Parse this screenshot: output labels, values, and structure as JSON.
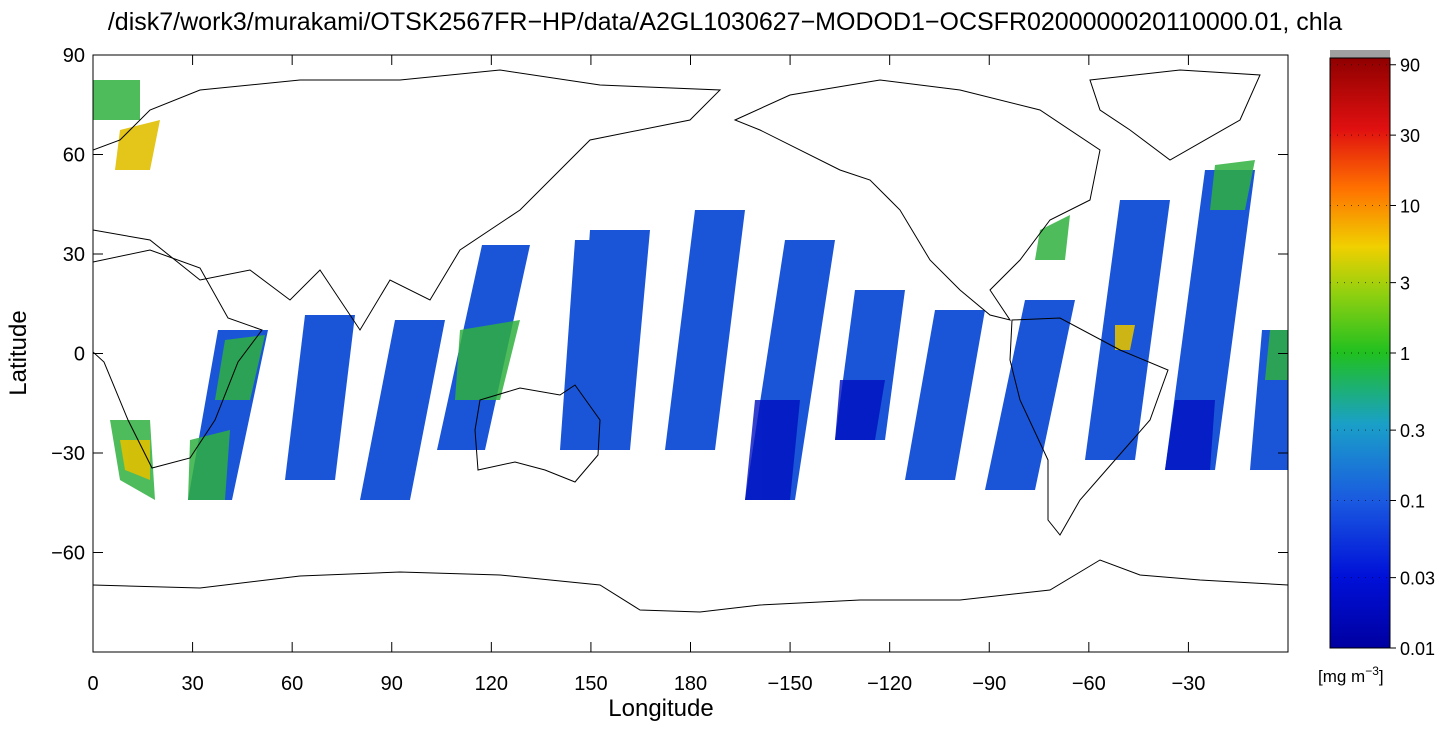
{
  "title": "/disk7/work3/murakami/OTSK2567FR−HP/data/A2GL1030627−MODOD1−OCSFR0200000020110000.01, chla",
  "map": {
    "xlabel": "Longitude",
    "ylabel": "Latitude",
    "xlim": [
      0,
      360
    ],
    "ylim": [
      -90,
      90
    ],
    "xticks": [
      0,
      30,
      60,
      90,
      120,
      150,
      180,
      {
        "value": -150,
        "label": "−150"
      },
      {
        "value": -120,
        "label": "−120"
      },
      {
        "value": -90,
        "label": "−90"
      },
      {
        "value": -60,
        "label": "−60"
      },
      {
        "value": -30,
        "label": "−30"
      }
    ],
    "yticks": [
      90,
      60,
      30,
      0,
      {
        "value": -30,
        "label": "−30"
      },
      {
        "value": -60,
        "label": "−60"
      }
    ]
  },
  "colorbar": {
    "log_scale": true,
    "lim": [
      0.01,
      100
    ],
    "ticks": [
      90,
      30,
      10,
      3,
      1,
      0.3,
      0.1,
      0.03,
      0.01
    ],
    "unit": [
      "[mg m",
      "−3",
      "]"
    ]
  }
}
